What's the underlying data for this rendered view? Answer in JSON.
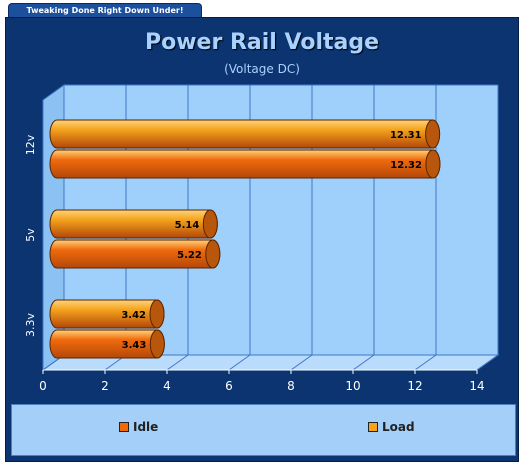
{
  "banner": {
    "text": "Tweaking Done Right Down Under!"
  },
  "chart_data": {
    "type": "bar",
    "orientation": "horizontal",
    "style": "3d-cylinder",
    "title": "Power Rail Voltage",
    "subtitle": "(Voltage DC)",
    "categories": [
      "12v",
      "5v",
      "3.3v"
    ],
    "series": [
      {
        "name": "Load",
        "color": "#f4a31c",
        "values": [
          12.31,
          5.14,
          3.42
        ]
      },
      {
        "name": "Idle",
        "color": "#f06a0c",
        "values": [
          12.32,
          5.22,
          3.43
        ]
      }
    ],
    "xlim": [
      0,
      14
    ],
    "xticks": [
      "0",
      "2",
      "4",
      "6",
      "8",
      "10",
      "12",
      "14"
    ],
    "grid": true,
    "legend": {
      "placement": "bottom",
      "items": [
        {
          "label": "Idle",
          "color": "#f06a0c"
        },
        {
          "label": "Load",
          "color": "#f4a31c"
        }
      ]
    },
    "colors": {
      "plot_bg": "#9fd0fb",
      "frame_bg": "#0b3470",
      "grid": "#3f76c8",
      "title": "#a9d2ff"
    }
  }
}
